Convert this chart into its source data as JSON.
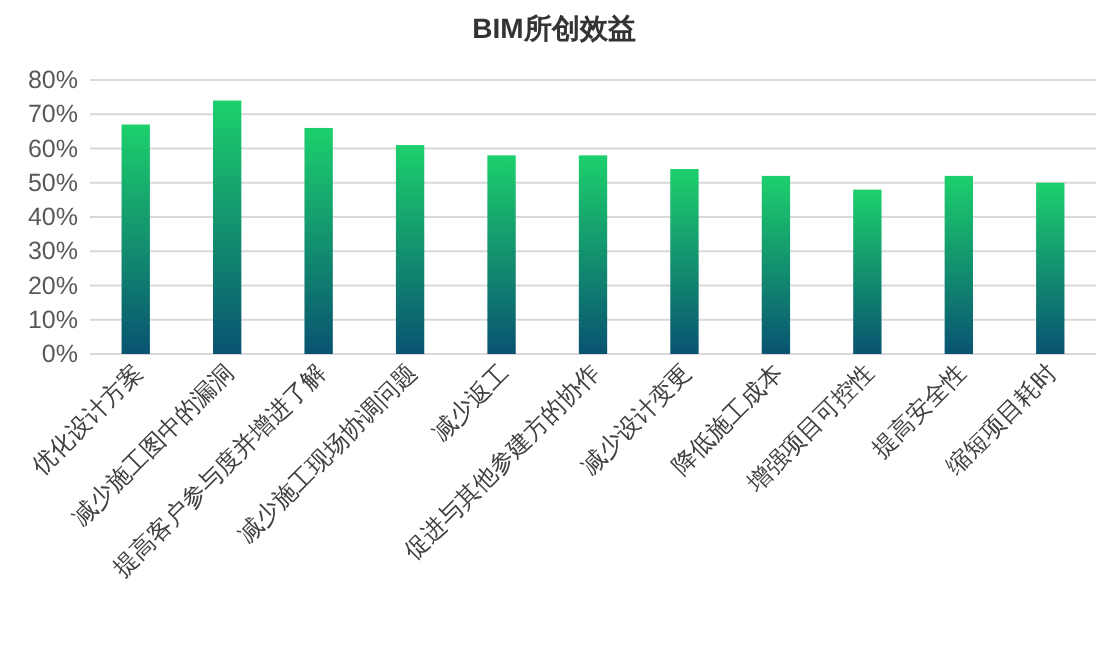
{
  "chart_data": {
    "type": "bar",
    "title": "BIM所创效益",
    "categories": [
      "优化设计方案",
      "减少施工图中的漏洞",
      "提高客户参与度并增进了解",
      "减少施工现场协调问题",
      "减少返工",
      "促进与其他参建方的协作",
      "减少设计变更",
      "降低施工成本",
      "增强项目可控性",
      "提高安全性",
      "缩短项目耗时"
    ],
    "values": [
      67,
      74,
      66,
      61,
      58,
      58,
      54,
      52,
      48,
      52,
      50
    ],
    "color": "#1dd06c",
    "ylim": [
      0,
      80
    ],
    "yticks": [
      {
        "value": 0,
        "label": "0%"
      },
      {
        "value": 10,
        "label": "10%"
      },
      {
        "value": 20,
        "label": "20%"
      },
      {
        "value": 30,
        "label": "30%"
      },
      {
        "value": 40,
        "label": "40%"
      },
      {
        "value": 50,
        "label": "50%"
      },
      {
        "value": 60,
        "label": "60%"
      },
      {
        "value": 70,
        "label": "70%"
      },
      {
        "value": 80,
        "label": "80%"
      }
    ],
    "grid": "y"
  }
}
